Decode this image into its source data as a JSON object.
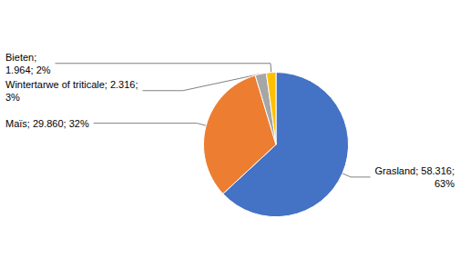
{
  "chart_data": {
    "type": "pie",
    "categories": [
      "Grasland",
      "Maïs",
      "Wintertarwe of triticale",
      "Bieten"
    ],
    "values": [
      58.316,
      29.86,
      2.316,
      1.964
    ],
    "value_labels": [
      "Grasland; 58.316;\n63%",
      "Maïs; 29.860; 32%",
      "Wintertarwe of triticale; 2.316;\n3%",
      "Bieten;\n1.964; 2%"
    ],
    "colors": [
      "#4472C4",
      "#ED7D31",
      "#A6A6A6",
      "#FFC000"
    ],
    "data_labels": true,
    "legend": false
  }
}
